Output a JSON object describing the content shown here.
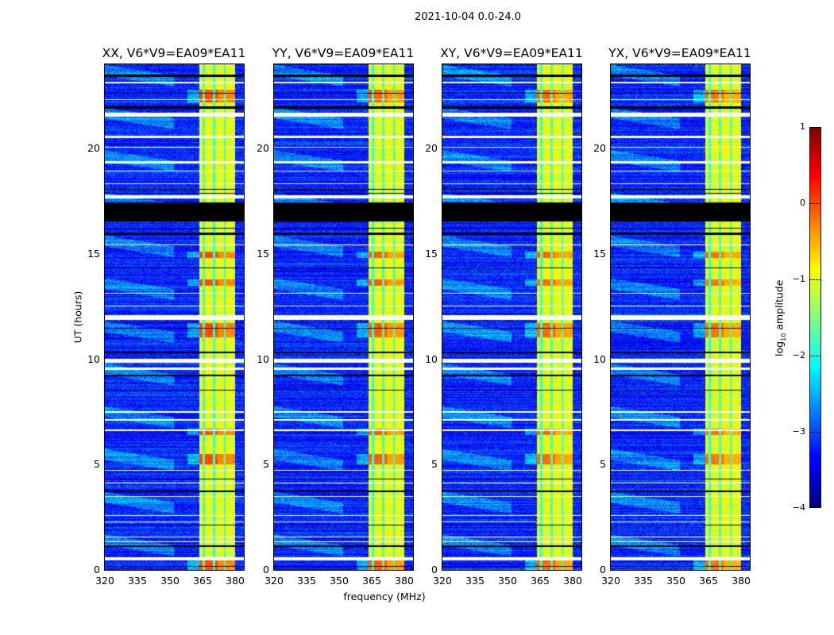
{
  "chart_data": {
    "type": "heatmap",
    "title": "2021-10-04 0.0-24.0",
    "xlabel": "frequency (MHz)",
    "ylabel": "UT (hours)",
    "xlim": [
      320,
      384
    ],
    "ylim": [
      0,
      24
    ],
    "xticks": [
      "320",
      "335",
      "350",
      "365",
      "380"
    ],
    "xtick_values": [
      320,
      335,
      350,
      365,
      380
    ],
    "yticks": [
      "0",
      "5",
      "10",
      "15",
      "20"
    ],
    "ytick_values": [
      0,
      5,
      10,
      15,
      20
    ],
    "colormap": "jet",
    "colorbar": {
      "label_main": "log",
      "label_sub": "10",
      "label_rest": " amplitude",
      "range": [
        -4,
        1
      ],
      "ticks": [
        "1",
        "0",
        "−1",
        "−2",
        "−3",
        "−4"
      ],
      "tick_values": [
        1,
        0,
        -1,
        -2,
        -3,
        -4
      ]
    },
    "panels": [
      {
        "title": "XX, V6*V9=EA09*EA11",
        "hot_level": 0.0
      },
      {
        "title": "YY, V6*V9=EA09*EA11",
        "hot_level": -0.1
      },
      {
        "title": "XY, V6*V9=EA09*EA11",
        "hot_level": -0.15
      },
      {
        "title": "YX, V6*V9=EA09*EA11",
        "hot_level": -0.2
      }
    ],
    "background_level": -3.2,
    "band_mhz": [
      363.5,
      380
    ],
    "band_level": -1.0,
    "band_gaps_mhz": [
      365.6,
      370.3,
      375.2
    ],
    "flagged_rows_hours": [
      [
        0.45,
        0.62
      ],
      [
        1.3,
        1.36
      ],
      [
        1.55,
        1.6
      ],
      [
        2.25,
        2.3
      ],
      [
        2.55,
        2.6
      ],
      [
        3.45,
        3.5
      ],
      [
        4.1,
        4.15
      ],
      [
        4.7,
        4.75
      ],
      [
        6.6,
        6.68
      ],
      [
        7.1,
        7.16
      ],
      [
        7.45,
        7.52
      ],
      [
        9.5,
        9.62
      ],
      [
        9.85,
        10.02
      ],
      [
        11.85,
        12.08
      ],
      [
        12.5,
        12.55
      ],
      [
        13.1,
        13.16
      ],
      [
        15.4,
        15.45
      ],
      [
        17.62,
        17.8
      ],
      [
        18.3,
        18.36
      ],
      [
        18.9,
        18.95
      ],
      [
        19.3,
        19.42
      ],
      [
        20.05,
        20.1
      ],
      [
        20.5,
        20.6
      ],
      [
        21.5,
        21.7
      ],
      [
        22.3,
        22.36
      ],
      [
        23.1,
        23.18
      ]
    ],
    "zero_rows_hours": [
      [
        16.55,
        17.45
      ],
      [
        17.85,
        17.9
      ],
      [
        18.05,
        18.1
      ],
      [
        15.9,
        16.0
      ],
      [
        16.2,
        16.25
      ],
      [
        21.9,
        22.0
      ],
      [
        23.4,
        23.5
      ],
      [
        14.3,
        14.35
      ],
      [
        8.5,
        8.55
      ],
      [
        9.2,
        9.25
      ],
      [
        3.7,
        3.75
      ],
      [
        1.1,
        1.15
      ],
      [
        0.15,
        0.2
      ],
      [
        4.3,
        4.35
      ],
      [
        11.45,
        11.5
      ],
      [
        2.1,
        2.15
      ],
      [
        22.6,
        22.65
      ],
      [
        10.3,
        10.35
      ]
    ],
    "hot_rows_hours": [
      [
        11.05,
        11.7
      ],
      [
        5.0,
        5.5
      ],
      [
        0.0,
        0.45
      ],
      [
        13.5,
        13.8
      ],
      [
        14.8,
        15.1
      ],
      [
        22.2,
        22.8
      ],
      [
        6.4,
        6.7
      ]
    ]
  }
}
